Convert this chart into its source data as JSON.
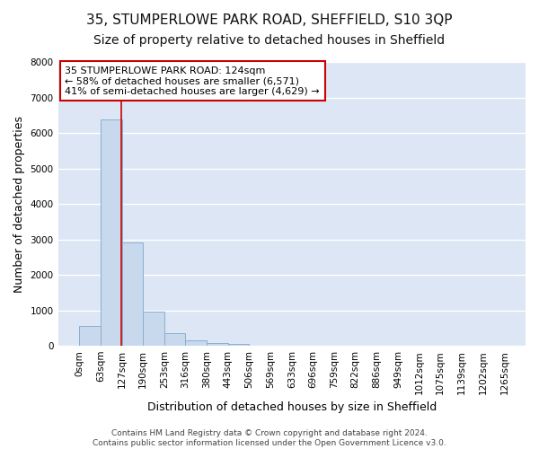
{
  "title": "35, STUMPERLOWE PARK ROAD, SHEFFIELD, S10 3QP",
  "subtitle": "Size of property relative to detached houses in Sheffield",
  "xlabel": "Distribution of detached houses by size in Sheffield",
  "ylabel": "Number of detached properties",
  "bar_labels": [
    "0sqm",
    "63sqm",
    "127sqm",
    "190sqm",
    "253sqm",
    "316sqm",
    "380sqm",
    "443sqm",
    "506sqm",
    "569sqm",
    "633sqm",
    "696sqm",
    "759sqm",
    "822sqm",
    "886sqm",
    "949sqm",
    "1012sqm",
    "1075sqm",
    "1139sqm",
    "1202sqm",
    "1265sqm"
  ],
  "bar_values": [
    560,
    6380,
    2920,
    975,
    360,
    165,
    80,
    40,
    0,
    0,
    0,
    0,
    0,
    0,
    0,
    0,
    0,
    0,
    0,
    0
  ],
  "bin_edges": [
    0,
    63,
    127,
    190,
    253,
    316,
    380,
    443,
    506,
    569,
    633,
    696,
    759,
    822,
    886,
    949,
    1012,
    1075,
    1139,
    1202,
    1265
  ],
  "ylim": [
    0,
    8000
  ],
  "yticks": [
    0,
    1000,
    2000,
    3000,
    4000,
    5000,
    6000,
    7000,
    8000
  ],
  "bar_color": "#c8d8ed",
  "bar_edge_color": "#8ab0d0",
  "vline_x": 124,
  "vline_color": "#cc0000",
  "annotation_title": "35 STUMPERLOWE PARK ROAD: 124sqm",
  "annotation_line1": "← 58% of detached houses are smaller (6,571)",
  "annotation_line2": "41% of semi-detached houses are larger (4,629) →",
  "annotation_box_facecolor": "#ffffff",
  "annotation_box_edgecolor": "#cc0000",
  "footer1": "Contains HM Land Registry data © Crown copyright and database right 2024.",
  "footer2": "Contains public sector information licensed under the Open Government Licence v3.0.",
  "fig_facecolor": "#ffffff",
  "ax_facecolor": "#dce6f5",
  "grid_color": "#ffffff",
  "title_fontsize": 11,
  "subtitle_fontsize": 10,
  "axis_label_fontsize": 9,
  "tick_fontsize": 7.5,
  "footer_fontsize": 6.5
}
